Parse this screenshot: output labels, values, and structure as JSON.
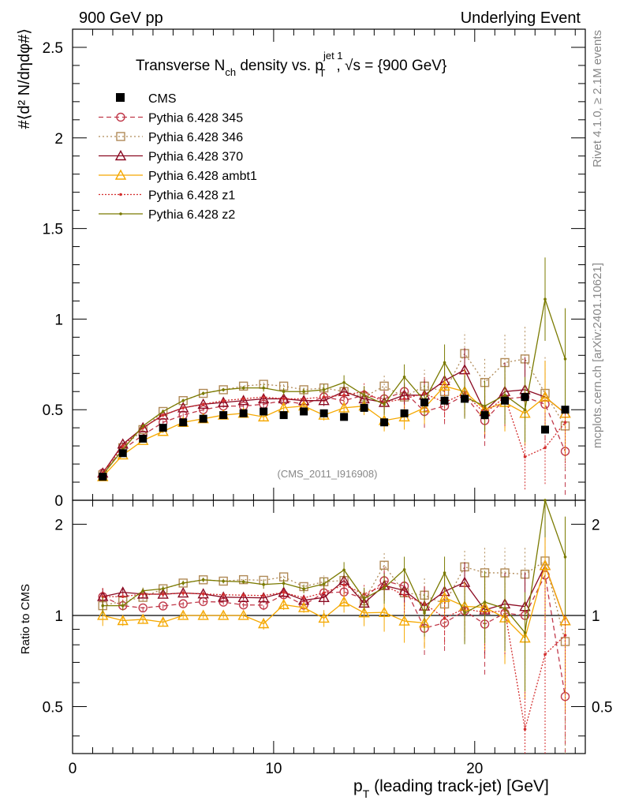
{
  "header": {
    "left": "900 GeV pp",
    "right": "Underlying Event"
  },
  "side": {
    "rivet": "Rivet 4.1.0, ≥ 2.1M events",
    "mcplots": "mcplots.cern.ch [arXiv:2401.10621]"
  },
  "title": {
    "prefix": "Transverse N",
    "sub_ch": "ch",
    "mid": " density vs. p",
    "sup_jet": "jet 1",
    "sub_t": "T",
    "suffix": ", √s = {900 GeV}"
  },
  "analysis_tag": "(CMS_2011_I916908)",
  "axes": {
    "ylabel_main": "#⟨d² N/dηdφ#⟩",
    "ylabel_ratio": "Ratio to CMS",
    "xlabel_p": "p",
    "xlabel_sub": "T",
    "xlabel_rest": " (leading track-jet) [GeV]",
    "main_yticks": [
      "0",
      "0.5",
      "1",
      "1.5",
      "2",
      "2.5"
    ],
    "ratio_yticks": [
      "0.5",
      "1",
      "2"
    ],
    "xticks": [
      "0",
      "10",
      "20"
    ]
  },
  "colors": {
    "cms": "#000000",
    "p345": "#c0394a",
    "p346": "#b08a57",
    "p370": "#8b0a22",
    "ambt1": "#f5a800",
    "z1": "#d32f2f",
    "z2": "#7a7a00"
  },
  "chart_data": {
    "type": "line",
    "title": "Transverse N_ch density vs. p_T^jet1, sqrt(s) = {900 GeV}",
    "xlabel": "p_T (leading track-jet) [GeV]",
    "ylabel": "#<d2 N/deta dphi#>",
    "xlim": [
      0,
      25.5
    ],
    "ylim": [
      0,
      2.6
    ],
    "ratio_ylim": [
      0.35,
      2.4
    ],
    "x": [
      1.5,
      2.5,
      3.5,
      4.5,
      5.5,
      6.5,
      7.5,
      8.5,
      9.5,
      10.5,
      11.5,
      12.5,
      13.5,
      14.5,
      15.5,
      16.5,
      17.5,
      18.5,
      19.5,
      20.5,
      21.5,
      22.5,
      23.5,
      24.5
    ],
    "reference": {
      "name": "CMS",
      "values": [
        0.13,
        0.26,
        0.34,
        0.4,
        0.43,
        0.45,
        0.47,
        0.48,
        0.49,
        0.47,
        0.49,
        0.48,
        0.46,
        0.51,
        0.43,
        0.48,
        0.54,
        0.55,
        0.56,
        0.47,
        0.55,
        0.57,
        0.39,
        0.5
      ]
    },
    "series": [
      {
        "name": "Pythia 6.428 345",
        "values": [
          0.15,
          0.28,
          0.36,
          0.43,
          0.47,
          0.5,
          0.52,
          0.52,
          0.53,
          0.55,
          0.53,
          0.57,
          0.55,
          0.58,
          0.56,
          0.6,
          0.49,
          0.52,
          0.58,
          0.44,
          0.56,
          0.57,
          0.53,
          0.27
        ],
        "errors": [
          0.01,
          0.01,
          0.01,
          0.01,
          0.01,
          0.01,
          0.01,
          0.01,
          0.02,
          0.02,
          0.02,
          0.03,
          0.04,
          0.05,
          0.06,
          0.07,
          0.09,
          0.1,
          0.12,
          0.14,
          0.16,
          0.18,
          0.2,
          0.24
        ]
      },
      {
        "name": "Pythia 6.428 346",
        "values": [
          0.14,
          0.29,
          0.39,
          0.49,
          0.55,
          0.59,
          0.61,
          0.63,
          0.64,
          0.63,
          0.61,
          0.62,
          0.6,
          0.57,
          0.63,
          0.57,
          0.63,
          0.6,
          0.81,
          0.65,
          0.76,
          0.78,
          0.59,
          0.41
        ],
        "errors": [
          0.01,
          0.01,
          0.01,
          0.01,
          0.01,
          0.01,
          0.01,
          0.01,
          0.02,
          0.02,
          0.02,
          0.03,
          0.04,
          0.05,
          0.06,
          0.07,
          0.09,
          0.1,
          0.12,
          0.14,
          0.16,
          0.18,
          0.2,
          0.24
        ]
      },
      {
        "name": "Pythia 6.428 370",
        "values": [
          0.15,
          0.31,
          0.4,
          0.47,
          0.51,
          0.53,
          0.54,
          0.55,
          0.56,
          0.56,
          0.55,
          0.55,
          0.6,
          0.56,
          0.54,
          0.58,
          0.58,
          0.66,
          0.72,
          0.49,
          0.6,
          0.61,
          0.57,
          0.48
        ],
        "errors": [
          0.01,
          0.01,
          0.01,
          0.01,
          0.01,
          0.01,
          0.01,
          0.01,
          0.02,
          0.02,
          0.02,
          0.03,
          0.04,
          0.05,
          0.06,
          0.07,
          0.09,
          0.1,
          0.12,
          0.14,
          0.16,
          0.18,
          0.2,
          0.24
        ]
      },
      {
        "name": "Pythia 6.428 ambt1",
        "values": [
          0.13,
          0.25,
          0.33,
          0.38,
          0.43,
          0.45,
          0.47,
          0.48,
          0.46,
          0.51,
          0.52,
          0.47,
          0.51,
          0.52,
          0.44,
          0.46,
          0.51,
          0.63,
          0.6,
          0.5,
          0.54,
          0.48,
          0.57,
          0.48
        ],
        "errors": [
          0.01,
          0.01,
          0.01,
          0.01,
          0.01,
          0.01,
          0.01,
          0.01,
          0.02,
          0.02,
          0.02,
          0.03,
          0.04,
          0.05,
          0.06,
          0.07,
          0.09,
          0.1,
          0.12,
          0.14,
          0.16,
          0.18,
          0.2,
          0.24
        ]
      },
      {
        "name": "Pythia 6.428 z1",
        "values": [
          0.15,
          0.3,
          0.4,
          0.47,
          0.51,
          0.53,
          0.55,
          0.56,
          0.57,
          0.56,
          0.56,
          0.57,
          0.58,
          0.6,
          0.54,
          0.56,
          0.59,
          0.54,
          0.59,
          0.48,
          0.57,
          0.24,
          0.29,
          0.43
        ],
        "errors": [
          0.01,
          0.01,
          0.01,
          0.01,
          0.01,
          0.01,
          0.01,
          0.01,
          0.02,
          0.02,
          0.02,
          0.03,
          0.04,
          0.05,
          0.06,
          0.07,
          0.09,
          0.1,
          0.12,
          0.14,
          0.16,
          0.18,
          0.2,
          0.24
        ]
      },
      {
        "name": "Pythia 6.428 z2",
        "values": [
          0.14,
          0.28,
          0.41,
          0.49,
          0.55,
          0.59,
          0.61,
          0.62,
          0.62,
          0.6,
          0.6,
          0.61,
          0.65,
          0.58,
          0.53,
          0.68,
          0.55,
          0.76,
          0.57,
          0.52,
          0.58,
          0.5,
          1.11,
          0.78
        ],
        "errors": [
          0.01,
          0.01,
          0.01,
          0.01,
          0.01,
          0.01,
          0.01,
          0.01,
          0.02,
          0.02,
          0.02,
          0.03,
          0.04,
          0.05,
          0.06,
          0.07,
          0.09,
          0.1,
          0.12,
          0.14,
          0.16,
          0.18,
          0.23,
          0.28
        ]
      }
    ]
  }
}
